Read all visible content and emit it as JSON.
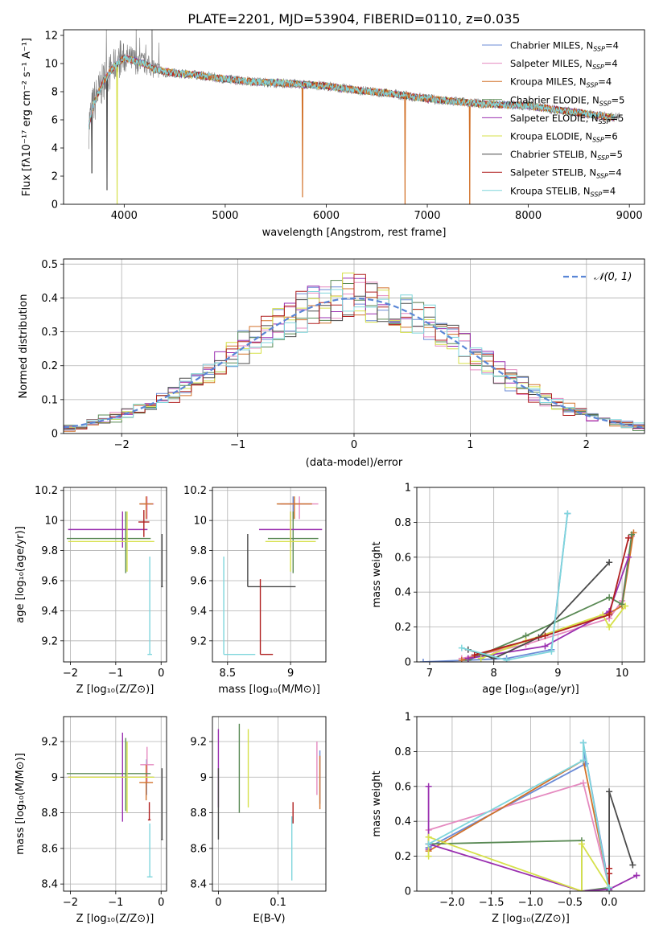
{
  "palette": [
    "#6b8bd6",
    "#e58ac0",
    "#d2722a",
    "#5a8a55",
    "#9a2fb0",
    "#d6e04a",
    "#4a4a4a",
    "#b02020",
    "#7fd6dc"
  ],
  "chart_data": [
    {
      "id": "spectrum",
      "type": "line",
      "title": "PLATE=2201, MJD=53904, FIBERID=0110, z=0.035",
      "xlabel": "wavelength [Angstrom, rest frame]",
      "ylabel": "Flux [fλ10⁻¹⁷ erg cm⁻² s⁻¹ A⁻¹]",
      "xlim": [
        3400,
        9150
      ],
      "ylim": [
        0,
        12.4
      ],
      "xticks": [
        4000,
        5000,
        6000,
        7000,
        8000,
        9000
      ],
      "yticks": [
        0,
        2,
        4,
        6,
        8,
        10,
        12
      ],
      "grid": false,
      "legend_position": "top-right",
      "legend": [
        {
          "name": "Chabrier MILES",
          "nssp": "4"
        },
        {
          "name": "Salpeter MILES",
          "nssp": "4"
        },
        {
          "name": "Kroupa MILES",
          "nssp": "4"
        },
        {
          "name": "Chabrier ELODIE",
          "nssp": "5"
        },
        {
          "name": "Salpeter ELODIE",
          "nssp": "5"
        },
        {
          "name": "Kroupa ELODIE",
          "nssp": "6"
        },
        {
          "name": "Chabrier STELIB",
          "nssp": "5"
        },
        {
          "name": "Salpeter STELIB",
          "nssp": "4"
        },
        {
          "name": "Kroupa STELIB",
          "nssp": "4"
        }
      ],
      "model_continuum": {
        "x": [
          3650,
          3700,
          3800,
          3900,
          4000,
          4100,
          4200,
          4300,
          4500,
          4700,
          5000,
          5300,
          5600,
          6000,
          6300,
          6600,
          7000,
          7300,
          7600,
          8000,
          8400,
          8800
        ],
        "y": [
          5.6,
          7.2,
          8.8,
          9.8,
          10.4,
          10.2,
          10.0,
          9.6,
          9.3,
          9.2,
          8.9,
          8.7,
          8.6,
          8.4,
          8.1,
          7.9,
          7.5,
          7.3,
          7.1,
          7.0,
          6.6,
          6.2
        ]
      },
      "model_dips": [
        {
          "series": 2,
          "x": 5765,
          "y": 0.5
        },
        {
          "series": 2,
          "x": 6780,
          "y": 0
        },
        {
          "series": 2,
          "x": 7420,
          "y": 0
        },
        {
          "series": 5,
          "x": 3930,
          "y": 0
        },
        {
          "series": 6,
          "x": 3680,
          "y": 2.2
        },
        {
          "series": 6,
          "x": 3830,
          "y": 1.0
        }
      ]
    },
    {
      "id": "residuals",
      "type": "line",
      "xlabel": "(data-model)/error",
      "ylabel": "Normed distribution",
      "xlim": [
        -2.5,
        2.5
      ],
      "ylim": [
        0,
        0.515
      ],
      "xticks": [
        -2,
        -1,
        0,
        1,
        2
      ],
      "yticks": [
        0.0,
        0.1,
        0.2,
        0.3,
        0.4,
        0.5
      ],
      "grid": true,
      "legend_position": "top-right",
      "legend_label": "𝒩(0, 1)",
      "bin_width": 0.1,
      "normal_reference": {
        "mean": 0,
        "sd": 1
      }
    },
    {
      "id": "age_vs_z",
      "type": "scatter",
      "xlabel": "Z [log₁₀(Z/Z⊙)]",
      "ylabel": "age  [log₁₀(age/yr)]",
      "xlim": [
        -2.15,
        0.12
      ],
      "ylim": [
        9.06,
        10.22
      ],
      "xticks": [
        -2,
        -1,
        0
      ],
      "yticks": [
        9.2,
        9.4,
        9.6,
        9.8,
        10.0,
        10.2
      ],
      "grid": true,
      "points": [
        {
          "series": 0,
          "x": -0.32,
          "y": 10.11,
          "xerr": [
            0.15,
            0.15
          ],
          "yerr": [
            0.1,
            0.05
          ]
        },
        {
          "series": 1,
          "x": -0.31,
          "y": 10.11,
          "xerr": [
            0.15,
            0.15
          ],
          "yerr": [
            0.1,
            0.05
          ]
        },
        {
          "series": 2,
          "x": -0.33,
          "y": 10.11,
          "xerr": [
            0.15,
            0.15
          ],
          "yerr": [
            0.1,
            0.05
          ]
        },
        {
          "series": 3,
          "x": -0.78,
          "y": 9.88,
          "xerr": [
            1.3,
            0.55
          ],
          "yerr": [
            0.23,
            0.18
          ]
        },
        {
          "series": 4,
          "x": -0.85,
          "y": 9.94,
          "xerr": [
            1.2,
            0.55
          ],
          "yerr": [
            0.12,
            0.12
          ]
        },
        {
          "series": 5,
          "x": -0.75,
          "y": 9.86,
          "xerr": [
            1.3,
            0.6
          ],
          "yerr": [
            0.2,
            0.2
          ]
        },
        {
          "series": 6,
          "x": 0.02,
          "y": 9.56,
          "xerr": [
            0.02,
            0.02
          ],
          "yerr": [
            0.0,
            0.35
          ]
        },
        {
          "series": 7,
          "x": -0.38,
          "y": 9.99,
          "xerr": [
            0.12,
            0.12
          ],
          "yerr": [
            0.1,
            0.08
          ]
        },
        {
          "series": 8,
          "x": -0.25,
          "y": 9.11,
          "xerr": [
            0.05,
            0.05
          ],
          "yerr": [
            0.0,
            0.65
          ]
        }
      ]
    },
    {
      "id": "age_vs_mass",
      "type": "scatter",
      "xlabel": "mass [log₁₀(M/M⊙)]",
      "ylabel": "",
      "xlim": [
        8.38,
        9.28
      ],
      "ylim": [
        9.06,
        10.22
      ],
      "xticks": [
        8.5,
        9.0
      ],
      "yticks": [
        9.2,
        9.4,
        9.6,
        9.8,
        10.0,
        10.2
      ],
      "grid": true,
      "points": [
        {
          "series": 0,
          "x": 9.02,
          "y": 10.11,
          "xerr": [
            0.12,
            0.15
          ],
          "yerr": [
            0.1,
            0.05
          ]
        },
        {
          "series": 1,
          "x": 9.07,
          "y": 10.11,
          "xerr": [
            0.15,
            0.15
          ],
          "yerr": [
            0.1,
            0.05
          ]
        },
        {
          "series": 2,
          "x": 9.03,
          "y": 10.11,
          "xerr": [
            0.14,
            0.14
          ],
          "yerr": [
            0.1,
            0.05
          ]
        },
        {
          "series": 3,
          "x": 9.02,
          "y": 9.88,
          "xerr": [
            0.2,
            0.2
          ],
          "yerr": [
            0.23,
            0.18
          ]
        },
        {
          "series": 4,
          "x": 9.0,
          "y": 9.94,
          "xerr": [
            0.25,
            0.25
          ],
          "yerr": [
            0.12,
            0.12
          ]
        },
        {
          "series": 5,
          "x": 9.0,
          "y": 9.86,
          "xerr": [
            0.2,
            0.2
          ],
          "yerr": [
            0.2,
            0.2
          ]
        },
        {
          "series": 6,
          "x": 8.66,
          "y": 9.56,
          "xerr": [
            0.0,
            0.38
          ],
          "yerr": [
            0.0,
            0.35
          ]
        },
        {
          "series": 7,
          "x": 8.76,
          "y": 9.11,
          "xerr": [
            0.0,
            0.1
          ],
          "yerr": [
            0.0,
            0.5
          ]
        },
        {
          "series": 8,
          "x": 8.47,
          "y": 9.11,
          "xerr": [
            0.0,
            0.25
          ],
          "yerr": [
            0.0,
            0.65
          ]
        }
      ]
    },
    {
      "id": "weight_vs_age",
      "type": "line",
      "xlabel": "age  [log₁₀(age/yr)]",
      "ylabel": "mass weight",
      "xlim": [
        6.8,
        10.35
      ],
      "ylim": [
        0,
        1
      ],
      "xticks": [
        7,
        8,
        9,
        10
      ],
      "yticks": [
        0.0,
        0.2,
        0.4,
        0.6,
        0.8,
        1.0
      ],
      "grid": true,
      "series": [
        {
          "x": [
            6.9,
            7.6,
            8.2,
            8.9,
            9.15
          ],
          "y": [
            0.0,
            0.01,
            0.02,
            0.07,
            0.85
          ]
        },
        {
          "x": [
            7.5,
            8.5,
            9.8,
            10.0,
            10.15
          ],
          "y": [
            0.02,
            0.1,
            0.25,
            0.35,
            0.72
          ]
        },
        {
          "x": [
            7.5,
            8.5,
            9.8,
            10.0,
            10.18
          ],
          "y": [
            0.01,
            0.12,
            0.28,
            0.32,
            0.74
          ]
        },
        {
          "x": [
            7.6,
            8.5,
            9.8,
            10.0,
            10.15
          ],
          "y": [
            0.01,
            0.15,
            0.37,
            0.33,
            0.73
          ]
        },
        {
          "x": [
            7.6,
            8.8,
            9.8,
            10.1
          ],
          "y": [
            0.02,
            0.09,
            0.29,
            0.6
          ]
        },
        {
          "x": [
            7.8,
            8.5,
            9.7,
            9.8,
            10.05
          ],
          "y": [
            0.02,
            0.12,
            0.27,
            0.2,
            0.32
          ]
        },
        {
          "x": [
            7.6,
            8.0,
            8.7,
            9.8
          ],
          "y": [
            0.07,
            0.02,
            0.14,
            0.57
          ]
        },
        {
          "x": [
            7.7,
            8.8,
            9.8,
            10.1
          ],
          "y": [
            0.04,
            0.15,
            0.27,
            0.71
          ]
        },
        {
          "x": [
            7.5,
            8.2,
            8.9,
            9.15
          ],
          "y": [
            0.08,
            0.01,
            0.06,
            0.85
          ]
        }
      ]
    },
    {
      "id": "mass_vs_z",
      "type": "scatter",
      "xlabel": "Z [log₁₀(Z/Z⊙)]",
      "ylabel": "mass [log₁₀(M/M⊙)]",
      "xlim": [
        -2.15,
        0.12
      ],
      "ylim": [
        8.36,
        9.34
      ],
      "xticks": [
        -2,
        -1,
        0
      ],
      "yticks": [
        8.4,
        8.6,
        8.8,
        9.0,
        9.2
      ],
      "grid": true,
      "points": [
        {
          "series": 0,
          "x": -0.32,
          "y": 9.0,
          "xerr": [
            0.15,
            0.15
          ],
          "yerr": [
            0.1,
            0.1
          ]
        },
        {
          "series": 1,
          "x": -0.31,
          "y": 9.07,
          "xerr": [
            0.15,
            0.15
          ],
          "yerr": [
            0.1,
            0.1
          ]
        },
        {
          "series": 2,
          "x": -0.33,
          "y": 8.97,
          "xerr": [
            0.15,
            0.15
          ],
          "yerr": [
            0.1,
            0.1
          ]
        },
        {
          "series": 3,
          "x": -0.78,
          "y": 9.02,
          "xerr": [
            1.3,
            0.55
          ],
          "yerr": [
            0.21,
            0.2
          ]
        },
        {
          "series": 4,
          "x": -0.85,
          "y": 9.0,
          "xerr": [
            1.2,
            0.55
          ],
          "yerr": [
            0.25,
            0.25
          ]
        },
        {
          "series": 5,
          "x": -0.75,
          "y": 9.0,
          "xerr": [
            1.3,
            0.6
          ],
          "yerr": [
            0.2,
            0.2
          ]
        },
        {
          "series": 6,
          "x": 0.02,
          "y": 8.65,
          "xerr": [
            0.02,
            0.02
          ],
          "yerr": [
            0.0,
            0.4
          ]
        },
        {
          "series": 7,
          "x": -0.26,
          "y": 8.76,
          "xerr": [
            0.03,
            0.03
          ],
          "yerr": [
            0.0,
            0.1
          ]
        },
        {
          "series": 8,
          "x": -0.25,
          "y": 8.44,
          "xerr": [
            0.06,
            0.06
          ],
          "yerr": [
            0.0,
            0.3
          ]
        }
      ]
    },
    {
      "id": "mass_vs_ebv",
      "type": "scatter",
      "xlabel": "E(B-V)",
      "ylabel": "",
      "xlim": [
        -0.01,
        0.18
      ],
      "ylim": [
        8.36,
        9.34
      ],
      "xticks": [
        0.0,
        0.1
      ],
      "yticks": [
        8.4,
        8.6,
        8.8,
        9.0,
        9.2
      ],
      "grid": true,
      "points": [
        {
          "series": 0,
          "x": 0.17,
          "y": 9.0,
          "xerr": [
            0,
            0
          ],
          "yerr": [
            0.15,
            0.15
          ]
        },
        {
          "series": 1,
          "x": 0.165,
          "y": 9.05,
          "xerr": [
            0,
            0
          ],
          "yerr": [
            0.15,
            0.15
          ]
        },
        {
          "series": 2,
          "x": 0.17,
          "y": 8.97,
          "xerr": [
            0,
            0
          ],
          "yerr": [
            0.15,
            0.15
          ]
        },
        {
          "series": 3,
          "x": 0.035,
          "y": 9.05,
          "xerr": [
            0,
            0
          ],
          "yerr": [
            0.25,
            0.25
          ]
        },
        {
          "series": 4,
          "x": 0.0,
          "y": 9.05,
          "xerr": [
            0,
            0
          ],
          "yerr": [
            0.22,
            0.22
          ]
        },
        {
          "series": 5,
          "x": 0.05,
          "y": 9.05,
          "xerr": [
            0,
            0
          ],
          "yerr": [
            0.22,
            0.22
          ]
        },
        {
          "series": 6,
          "x": 0.0,
          "y": 8.85,
          "xerr": [
            0,
            0
          ],
          "yerr": [
            0.2,
            0.2
          ]
        },
        {
          "series": 7,
          "x": 0.125,
          "y": 8.8,
          "xerr": [
            0,
            0
          ],
          "yerr": [
            0.06,
            0.06
          ]
        },
        {
          "series": 8,
          "x": 0.123,
          "y": 8.6,
          "xerr": [
            0,
            0
          ],
          "yerr": [
            0.18,
            0.18
          ]
        }
      ]
    },
    {
      "id": "weight_vs_z",
      "type": "line",
      "xlabel": "Z [log₁₀(Z/Z⊙)]",
      "ylabel": "mass weight",
      "xlim": [
        -2.45,
        0.45
      ],
      "ylim": [
        0,
        1
      ],
      "xticks": [
        -2.0,
        -1.5,
        -1.0,
        -0.5,
        0.0
      ],
      "xticklabels": [
        "−2.0",
        "−1.5",
        "−1.0",
        "−0.5",
        "0.0"
      ],
      "yticks": [
        0.0,
        0.2,
        0.4,
        0.6,
        0.8,
        1.0
      ],
      "grid": true,
      "series": [
        {
          "x": [
            -2.3,
            -0.3,
            -0.33,
            0.0,
            0.0
          ],
          "y": [
            0.25,
            0.73,
            0.85,
            0.02,
            0.0
          ]
        },
        {
          "x": [
            -2.3,
            -0.33,
            0.0,
            0.0
          ],
          "y": [
            0.35,
            0.62,
            0.02,
            0.0
          ]
        },
        {
          "x": [
            -2.3,
            -0.33,
            0.0,
            0.0
          ],
          "y": [
            0.23,
            0.75,
            0.02,
            0.0
          ]
        },
        {
          "x": [
            -2.3,
            -0.35,
            -0.35,
            0.0
          ],
          "y": [
            0.27,
            0.29,
            0.0,
            0.02
          ]
        },
        {
          "x": [
            -2.3,
            -2.3,
            -2.3,
            -0.35,
            0.0,
            0.35,
            0.35
          ],
          "y": [
            0.6,
            0.24,
            0.27,
            0.0,
            0.01,
            0.09,
            0.09
          ]
        },
        {
          "x": [
            -2.3,
            -2.3,
            -0.35,
            -0.35,
            0.0
          ],
          "y": [
            0.2,
            0.31,
            0.0,
            0.27,
            0.02
          ]
        },
        {
          "x": [
            0.0,
            0.0,
            0.3
          ],
          "y": [
            0.0,
            0.57,
            0.15
          ]
        },
        {
          "x": [
            0.0,
            0.0,
            0.0
          ],
          "y": [
            0.0,
            0.1,
            0.13
          ]
        },
        {
          "x": [
            -2.3,
            -0.33,
            -0.33,
            0.0,
            0.0
          ],
          "y": [
            0.27,
            0.75,
            0.85,
            0.0,
            0.02
          ]
        }
      ]
    }
  ]
}
